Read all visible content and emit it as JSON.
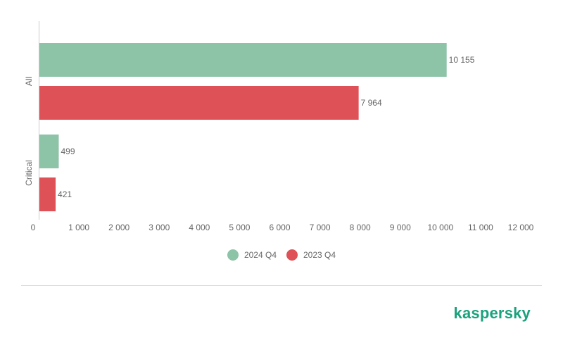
{
  "chart_data": {
    "type": "bar",
    "orientation": "horizontal",
    "categories": [
      "All",
      "Critical"
    ],
    "series": [
      {
        "name": "2024 Q4",
        "color": "#8dc3a7",
        "values": [
          10155,
          499
        ],
        "labels": [
          "10 155",
          "499"
        ]
      },
      {
        "name": "2023 Q4",
        "color": "#de5156",
        "values": [
          7964,
          421
        ],
        "labels": [
          "7 964",
          "421"
        ]
      }
    ],
    "x_ticks": [
      0,
      1000,
      2000,
      3000,
      4000,
      5000,
      6000,
      7000,
      8000,
      9000,
      10000,
      11000,
      12000
    ],
    "x_tick_labels": [
      "0",
      "1 000",
      "2 000",
      "3 000",
      "4 000",
      "5 000",
      "6 000",
      "7 000",
      "8 000",
      "9 000",
      "10 000",
      "11 000",
      "12 000"
    ],
    "xlim": [
      0,
      12000
    ],
    "grid": false,
    "legend_position": "bottom"
  },
  "brand": {
    "text": "kaspersky",
    "color": "#1ba27d"
  }
}
